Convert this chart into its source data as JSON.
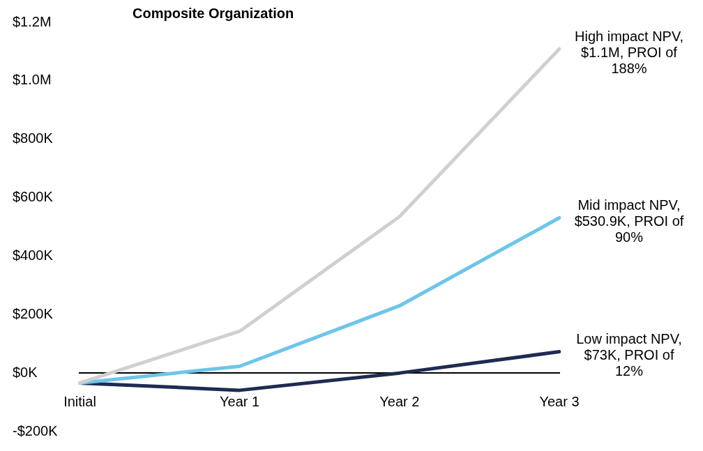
{
  "chart_data": {
    "type": "line",
    "title": "Composite Organization",
    "categories": [
      "Initial",
      "Year 1",
      "Year 2",
      "Year 3"
    ],
    "series": [
      {
        "color": "#d0d0d0",
        "values": [
          -34000,
          143000,
          535000,
          1109000
        ]
      },
      {
        "color": "#6cc5eb",
        "values": [
          -34000,
          23000,
          230000,
          531000
        ]
      },
      {
        "color": "#1e2b52",
        "values": [
          -34000,
          -59000,
          0,
          73000
        ]
      }
    ],
    "ylim": [
      -200000,
      1200000
    ],
    "yticks": [
      {
        "value": -200000,
        "label": "-$200K"
      },
      {
        "value": 0,
        "label": "$0K"
      },
      {
        "value": 200000,
        "label": "$200K"
      },
      {
        "value": 400000,
        "label": "$400K"
      },
      {
        "value": 600000,
        "label": "$600K"
      },
      {
        "value": 800000,
        "label": "$800K"
      },
      {
        "value": 1000000,
        "label": "$1.0M"
      },
      {
        "value": 1200000,
        "label": "$1.2M"
      }
    ],
    "annotations": [
      {
        "text": "High impact NPV, $1.1M, PROI of 188%",
        "x": "Year 3",
        "y": 1109000
      },
      {
        "text": "Mid impact NPV, $530.9K, PROI of 90%",
        "x": "Year 3",
        "y": 531000
      },
      {
        "text": "Low impact NPV, $73K, PROI of 12%",
        "x": "Year 3",
        "y": 73000
      }
    ],
    "grid": false,
    "legend": false,
    "marker": "none",
    "line_style": "solid"
  }
}
